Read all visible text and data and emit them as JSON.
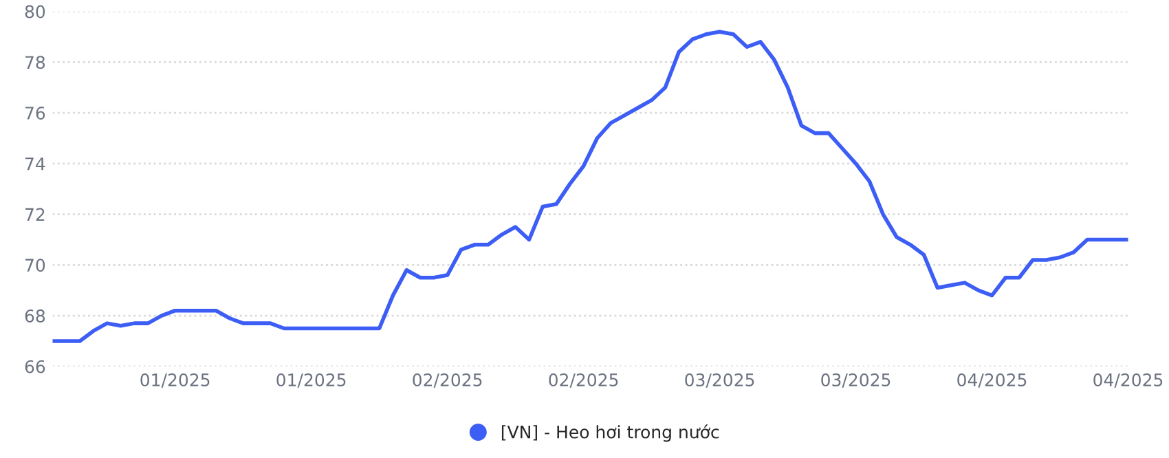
{
  "chart_data": {
    "type": "line",
    "categories": [
      null,
      null,
      null,
      null,
      null,
      null,
      null,
      null,
      null,
      "01/2025",
      null,
      null,
      null,
      null,
      null,
      null,
      null,
      null,
      null,
      "01/2025",
      null,
      null,
      null,
      null,
      null,
      null,
      null,
      null,
      null,
      "02/2025",
      null,
      null,
      null,
      null,
      null,
      null,
      null,
      null,
      null,
      "02/2025",
      null,
      null,
      null,
      null,
      null,
      null,
      null,
      null,
      null,
      "03/2025",
      null,
      null,
      null,
      null,
      null,
      null,
      null,
      null,
      null,
      "03/2025",
      null,
      null,
      null,
      null,
      null,
      null,
      null,
      null,
      null,
      "04/2025",
      null,
      null,
      null,
      null,
      null,
      null,
      null,
      null,
      null,
      "04/2025"
    ],
    "series": [
      {
        "name": "[VN] - Heo hơi trong nước",
        "color": "#3d5ef5",
        "values": [
          67.0,
          67.0,
          67.0,
          67.4,
          67.7,
          67.6,
          67.7,
          67.7,
          68.0,
          68.2,
          68.2,
          68.2,
          68.2,
          67.9,
          67.7,
          67.7,
          67.7,
          67.5,
          67.5,
          67.5,
          67.5,
          67.5,
          67.5,
          67.5,
          67.5,
          68.8,
          69.8,
          69.5,
          69.5,
          69.6,
          70.6,
          70.8,
          70.8,
          71.2,
          71.5,
          71.0,
          72.3,
          72.4,
          73.2,
          73.9,
          75.0,
          75.6,
          75.9,
          76.2,
          76.5,
          77.0,
          78.4,
          78.9,
          79.1,
          79.2,
          79.1,
          78.6,
          78.8,
          78.1,
          77.0,
          75.5,
          75.2,
          75.2,
          74.6,
          74.0,
          73.3,
          72.0,
          71.1,
          70.8,
          70.4,
          69.1,
          69.2,
          69.3,
          69.0,
          68.8,
          69.5,
          69.5,
          70.2,
          70.2,
          70.3,
          70.5,
          71.0,
          71.0,
          71.0,
          71.0
        ]
      }
    ],
    "ylim": [
      66,
      80
    ],
    "yticks": [
      66,
      68,
      70,
      72,
      74,
      76,
      78,
      80
    ],
    "grid": "y",
    "legend": "bottom"
  }
}
